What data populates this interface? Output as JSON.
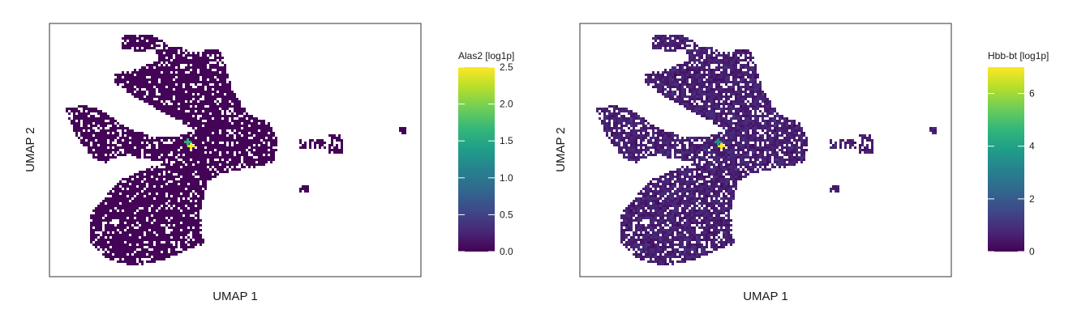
{
  "chart_data": [
    {
      "type": "heatmap",
      "subtype": "binned-embedding",
      "xlabel": "UMAP 1",
      "ylabel": "UMAP 2",
      "colorbar": {
        "title": "Alas2 [log1p]",
        "range": [
          0,
          2.5
        ],
        "ticks": [
          0.0,
          0.5,
          1.0,
          1.5,
          2.0,
          2.5
        ],
        "tick_labels": [
          "0.0",
          "0.5",
          "1.0",
          "1.5",
          "2.0",
          "2.5"
        ],
        "colormap": "viridis"
      },
      "background_value": 0.02,
      "hotspots": [
        {
          "value": 2.5
        },
        {
          "value": 1.6
        }
      ],
      "x_ticks_shown": false,
      "y_ticks_shown": false
    },
    {
      "type": "heatmap",
      "subtype": "binned-embedding",
      "xlabel": "UMAP 1",
      "ylabel": "UMAP 2",
      "colorbar": {
        "title": "Hbb-bt [log1p]",
        "range": [
          0,
          7
        ],
        "ticks": [
          0,
          2,
          4,
          6
        ],
        "tick_labels": [
          "0",
          "2",
          "4",
          "6"
        ],
        "colormap": "viridis"
      },
      "background_value": 0.6,
      "hotspots": [
        {
          "value": 7
        },
        {
          "value": 3.5
        }
      ],
      "x_ticks_shown": false,
      "y_ticks_shown": false
    }
  ],
  "colors": {
    "viridis_stops": [
      "#440154",
      "#482878",
      "#3e4989",
      "#31688e",
      "#26828e",
      "#1f9e89",
      "#35b779",
      "#6ece58",
      "#b5de2b",
      "#fde725"
    ],
    "frame": "#333333",
    "background": "#ffffff"
  }
}
